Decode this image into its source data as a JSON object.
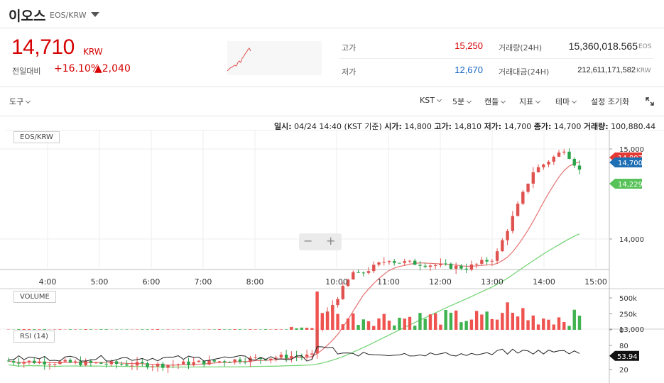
{
  "header": {
    "coin_name": "이오스",
    "pair": "EOS/KRW",
    "price": "14,710",
    "price_unit": "KRW",
    "change_label": "전일대비",
    "change_pct": "+16.10%",
    "change_amount": "▲2,040"
  },
  "stats": {
    "high_label": "고가",
    "high_value": "15,250",
    "low_label": "저가",
    "low_value": "12,670",
    "volume_label": "거래량(24H)",
    "volume_value": "15,360,018.565",
    "volume_unit": "EOS",
    "amount_label": "거래대금(24H)",
    "amount_value": "212,611,171,582",
    "amount_unit": "KRW"
  },
  "toolbar": {
    "tools": "도구",
    "timezone": "KST",
    "interval": "5분",
    "candle": "캔들",
    "indicator": "지표",
    "theme": "테마",
    "reset": "설정 조기화"
  },
  "info": {
    "date_label": "일시:",
    "date_value": "04/24 14:40 (KST 기준)",
    "open_label": "시가:",
    "open_value": "14,800",
    "high_label": "고가:",
    "high_value": "14,810",
    "low_label": "저가:",
    "low_value": "14,700",
    "close_label": "종가:",
    "close_value": "14,700",
    "vol_label": "거래량:",
    "vol_value": "100,880.44"
  },
  "panels": {
    "price_label": "EOS/KRW",
    "volume_label": "VOLUME",
    "rsi_label": "RSI (14)"
  },
  "zoom": {
    "out": "−",
    "in": "+"
  },
  "colors": {
    "up": "#ef5350",
    "down": "#26a69a",
    "upCandle": "#e0524f",
    "downCandle": "#2aa34a",
    "accent": "#d60000",
    "low": "#1565c0"
  },
  "chart_data": {
    "type": "candlestick",
    "x_ticks": [
      "4:00",
      "5:00",
      "6:00",
      "7:00",
      "8:00",
      "10:00",
      "11:00",
      "12:00",
      "13:00",
      "14:00",
      "15:00"
    ],
    "price_ticks": [
      "15,000",
      "14,000",
      "13,000"
    ],
    "volume_ticks": [
      "500k",
      "250k",
      "0"
    ],
    "rsi_ticks": [
      "80",
      "20"
    ],
    "last_price_tag": "14,700",
    "ma_short_tag": "14,807",
    "ma_long_tag": "14,229",
    "rsi_tag": "53.94"
  }
}
